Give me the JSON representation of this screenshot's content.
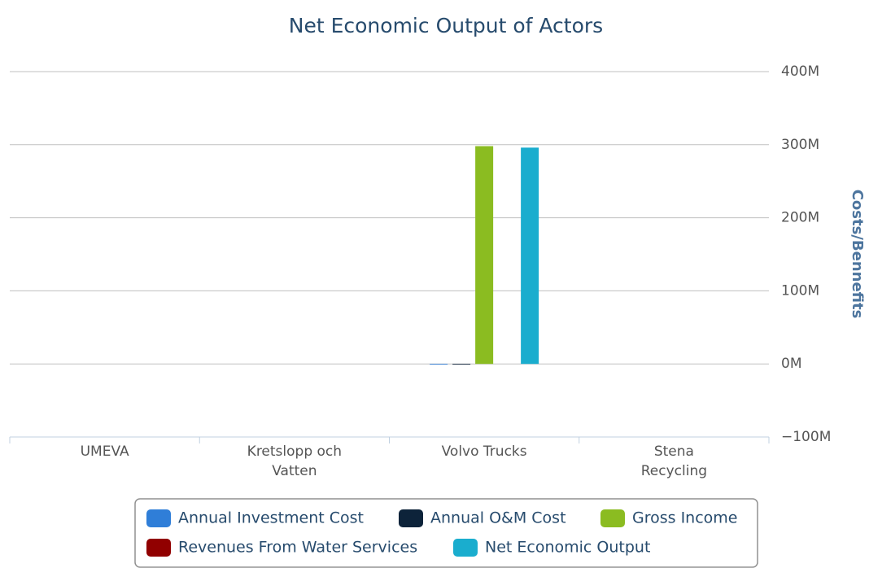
{
  "chart_data": {
    "type": "bar",
    "title": "Net Economic Output of Actors",
    "y_axis_label": "Costs/Bennefits",
    "categories": [
      "UMEVA",
      "Kretslopp och Vatten",
      "Volvo Trucks",
      "Stena Recycling"
    ],
    "series": [
      {
        "name": "Annual Investment Cost",
        "color": "#2f7ed8",
        "values": [
          0,
          0,
          -1000000,
          0
        ]
      },
      {
        "name": "Annual O&M Cost",
        "color": "#0d233a",
        "values": [
          0,
          0,
          -1000000,
          0
        ]
      },
      {
        "name": "Gross Income",
        "color": "#8bbc21",
        "values": [
          0,
          0,
          298000000,
          0
        ]
      },
      {
        "name": "Revenues From Water Services",
        "color": "#910000",
        "values": [
          0,
          0,
          0,
          0
        ]
      },
      {
        "name": "Net Economic Output",
        "color": "#1aadce",
        "values": [
          0,
          0,
          296000000,
          0
        ]
      }
    ],
    "ylim": [
      -100000000,
      400000000
    ],
    "yticks": [
      {
        "value": -100000000,
        "label": "−100M"
      },
      {
        "value": 0,
        "label": "0M"
      },
      {
        "value": 100000000,
        "label": "100M"
      },
      {
        "value": 200000000,
        "label": "200M"
      },
      {
        "value": 300000000,
        "label": "300M"
      },
      {
        "value": 400000000,
        "label": "400M"
      }
    ],
    "grid": true
  }
}
